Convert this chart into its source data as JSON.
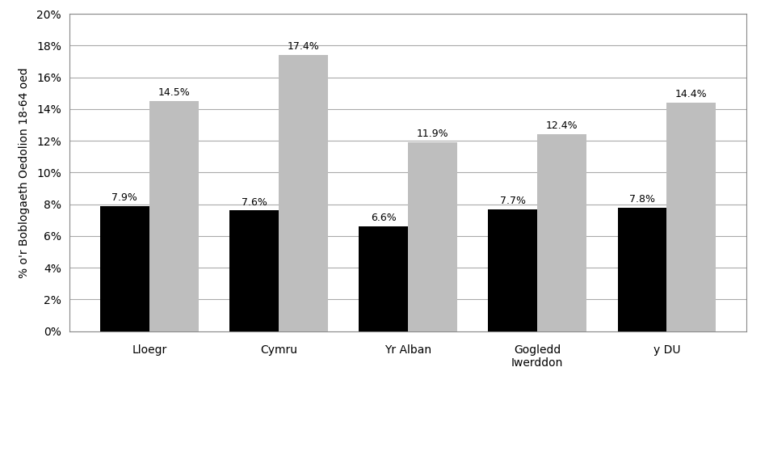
{
  "categories": [
    "Lloegr",
    "Cymru",
    "Yr Alban",
    "Gogledd\nIwerddon",
    "y DU"
  ],
  "non_graduate_values": [
    7.9,
    7.6,
    6.6,
    7.7,
    7.8
  ],
  "graduate_values": [
    14.5,
    17.4,
    11.9,
    12.4,
    14.4
  ],
  "non_graduate_labels": [
    "7.9%",
    "7.6%",
    "6.6%",
    "7.7%",
    "7.8%"
  ],
  "graduate_labels": [
    "14.5%",
    "17.4%",
    "11.9%",
    "12.4%",
    "14.4%"
  ],
  "non_graduate_color": "#000000",
  "graduate_color": "#BEBEBE",
  "ylabel": "% o'r Boblogaeth Oedolion 18-64 oed",
  "ylim": [
    0,
    20
  ],
  "yticks": [
    0,
    2,
    4,
    6,
    8,
    10,
    12,
    14,
    16,
    18,
    20
  ],
  "ytick_labels": [
    "0%",
    "2%",
    "4%",
    "6%",
    "8%",
    "10%",
    "12%",
    "14%",
    "16%",
    "18%",
    "20%"
  ],
  "bar_width": 0.38,
  "background_color": "#FFFFFF",
  "grid_color": "#AAAAAA",
  "label_fontsize": 9,
  "axis_fontsize": 10,
  "legend_fontsize": 10,
  "spine_color": "#888888"
}
